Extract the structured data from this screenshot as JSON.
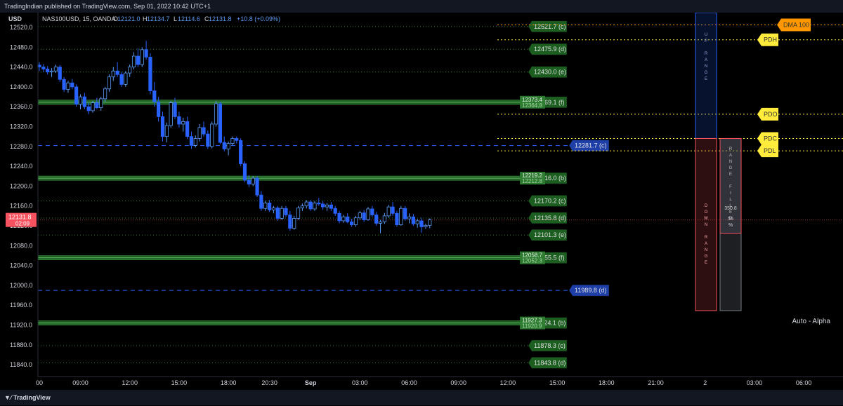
{
  "attribution": "TradingIndian published on TradingView.com, Sep 01, 2022 10:42 UTC+1",
  "footer_brand": "TradingView",
  "axis_unit": "USD",
  "symbol_header": {
    "symbol": "NAS100USD, 15, OANDA",
    "o_label": "O",
    "o": "12121.0",
    "h_label": "H",
    "h": "12134.7",
    "l_label": "L",
    "l": "12114.6",
    "c_label": "C",
    "c": "12131.8",
    "change": "+10.8 (+0.09%)"
  },
  "current_price": {
    "price": "12131.8",
    "countdown": "02:09"
  },
  "watermark": "Auto - Alpha",
  "colors": {
    "up": "#5b9cf6",
    "down": "#2962ff",
    "green_band": "#1b5e20",
    "yellow": "#ffeb3b",
    "orange": "#ff9800",
    "blue_label": "#1e3fa8",
    "red": "#f7525f"
  },
  "chart_data": {
    "type": "candlestick",
    "ylim": [
      11810,
      12540
    ],
    "y_ticks": [
      12520,
      12480,
      12440,
      12400,
      12360,
      12320,
      12280,
      12240,
      12200,
      12160,
      12120,
      12080,
      12040,
      12000,
      11960,
      11920,
      11880,
      11840
    ],
    "y_tick_labels": [
      "12520.0",
      "12480.0",
      "12440.0",
      "12400.0",
      "12360.0",
      "12320.0",
      "12280.0",
      "12240.0",
      "12200.0",
      "12160.0",
      "12120.0",
      "12080.0",
      "12040.0",
      "12000.0",
      "11960.0",
      "11920.0",
      "11880.0",
      "11840.0"
    ],
    "x_labels": [
      {
        "label": "00",
        "i": 0
      },
      {
        "label": "09:00",
        "i": 10
      },
      {
        "label": "12:00",
        "i": 22
      },
      {
        "label": "15:00",
        "i": 34
      },
      {
        "label": "18:00",
        "i": 46
      },
      {
        "label": "20:30",
        "i": 56
      },
      {
        "label": "Sep",
        "i": 66
      },
      {
        "label": "03:00",
        "i": 78
      },
      {
        "label": "06:00",
        "i": 90
      },
      {
        "label": "09:00",
        "i": 102
      },
      {
        "label": "12:00",
        "i": 114
      },
      {
        "label": "15:00",
        "i": 126
      },
      {
        "label": "18:00",
        "i": 138
      },
      {
        "label": "21:00",
        "i": 150
      },
      {
        "label": "2",
        "i": 162
      },
      {
        "label": "03:00",
        "i": 174
      },
      {
        "label": "06:00",
        "i": 186
      }
    ],
    "candles": [
      [
        12444,
        12450,
        12432,
        12440
      ],
      [
        12440,
        12446,
        12430,
        12436
      ],
      [
        12436,
        12442,
        12425,
        12430
      ],
      [
        12430,
        12438,
        12420,
        12432
      ],
      [
        12432,
        12445,
        12428,
        12440
      ],
      [
        12440,
        12444,
        12410,
        12415
      ],
      [
        12415,
        12420,
        12390,
        12395
      ],
      [
        12395,
        12412,
        12388,
        12408
      ],
      [
        12408,
        12416,
        12395,
        12400
      ],
      [
        12400,
        12405,
        12360,
        12365
      ],
      [
        12365,
        12385,
        12355,
        12380
      ],
      [
        12380,
        12388,
        12355,
        12360
      ],
      [
        12360,
        12368,
        12345,
        12352
      ],
      [
        12352,
        12372,
        12348,
        12368
      ],
      [
        12368,
        12378,
        12355,
        12358
      ],
      [
        12358,
        12380,
        12352,
        12376
      ],
      [
        12376,
        12400,
        12370,
        12396
      ],
      [
        12396,
        12425,
        12390,
        12420
      ],
      [
        12420,
        12440,
        12412,
        12432
      ],
      [
        12432,
        12450,
        12420,
        12425
      ],
      [
        12425,
        12430,
        12400,
        12405
      ],
      [
        12405,
        12432,
        12400,
        12428
      ],
      [
        12428,
        12445,
        12420,
        12440
      ],
      [
        12440,
        12470,
        12435,
        12462
      ],
      [
        12462,
        12478,
        12440,
        12445
      ],
      [
        12445,
        12480,
        12440,
        12475
      ],
      [
        12475,
        12493,
        12455,
        12460
      ],
      [
        12460,
        12468,
        12385,
        12392
      ],
      [
        12392,
        12410,
        12360,
        12370
      ],
      [
        12370,
        12380,
        12330,
        12340
      ],
      [
        12340,
        12350,
        12290,
        12300
      ],
      [
        12300,
        12328,
        12288,
        12322
      ],
      [
        12322,
        12372,
        12318,
        12368
      ],
      [
        12368,
        12378,
        12335,
        12340
      ],
      [
        12340,
        12350,
        12318,
        12325
      ],
      [
        12325,
        12338,
        12310,
        12330
      ],
      [
        12330,
        12340,
        12295,
        12300
      ],
      [
        12300,
        12310,
        12275,
        12282
      ],
      [
        12282,
        12302,
        12278,
        12296
      ],
      [
        12296,
        12325,
        12290,
        12318
      ],
      [
        12318,
        12330,
        12300,
        12305
      ],
      [
        12305,
        12312,
        12275,
        12280
      ],
      [
        12280,
        12330,
        12276,
        12325
      ],
      [
        12325,
        12372,
        12320,
        12366
      ],
      [
        12366,
        12370,
        12285,
        12288
      ],
      [
        12288,
        12300,
        12270,
        12275
      ],
      [
        12275,
        12290,
        12262,
        12286
      ],
      [
        12286,
        12300,
        12282,
        12296
      ],
      [
        12296,
        12300,
        12286,
        12292
      ],
      [
        12292,
        12296,
        12240,
        12245
      ],
      [
        12245,
        12250,
        12208,
        12212
      ],
      [
        12212,
        12222,
        12198,
        12204
      ],
      [
        12204,
        12220,
        12200,
        12216
      ],
      [
        12216,
        12220,
        12178,
        12182
      ],
      [
        12182,
        12190,
        12150,
        12155
      ],
      [
        12155,
        12170,
        12150,
        12166
      ],
      [
        12166,
        12172,
        12148,
        12152
      ],
      [
        12152,
        12160,
        12145,
        12156
      ],
      [
        12156,
        12160,
        12130,
        12135
      ],
      [
        12135,
        12160,
        12132,
        12155
      ],
      [
        12155,
        12160,
        12138,
        12142
      ],
      [
        12142,
        12150,
        12110,
        12115
      ],
      [
        12115,
        12140,
        12112,
        12135
      ],
      [
        12135,
        12160,
        12132,
        12156
      ],
      [
        12156,
        12165,
        12150,
        12160
      ],
      [
        12160,
        12172,
        12155,
        12168
      ],
      [
        12168,
        12172,
        12150,
        12154
      ],
      [
        12154,
        12170,
        12150,
        12166
      ],
      [
        12166,
        12176,
        12160,
        12164
      ],
      [
        12164,
        12170,
        12152,
        12158
      ],
      [
        12158,
        12166,
        12150,
        12162
      ],
      [
        12162,
        12168,
        12150,
        12155
      ],
      [
        12155,
        12160,
        12140,
        12145
      ],
      [
        12145,
        12150,
        12125,
        12130
      ],
      [
        12130,
        12142,
        12126,
        12138
      ],
      [
        12138,
        12145,
        12125,
        12128
      ],
      [
        12128,
        12134,
        12118,
        12122
      ],
      [
        12122,
        12140,
        12118,
        12136
      ],
      [
        12136,
        12150,
        12132,
        12146
      ],
      [
        12146,
        12152,
        12128,
        12132
      ],
      [
        12132,
        12158,
        12130,
        12154
      ],
      [
        12154,
        12160,
        12138,
        12142
      ],
      [
        12142,
        12148,
        12120,
        12125
      ],
      [
        12125,
        12132,
        12105,
        12128
      ],
      [
        12128,
        12146,
        12124,
        12140
      ],
      [
        12140,
        12162,
        12136,
        12158
      ],
      [
        12158,
        12168,
        12140,
        12145
      ],
      [
        12145,
        12150,
        12118,
        12122
      ],
      [
        12122,
        12160,
        12120,
        12155
      ],
      [
        12155,
        12160,
        12130,
        12134
      ],
      [
        12134,
        12145,
        12125,
        12138
      ],
      [
        12138,
        12144,
        12120,
        12124
      ],
      [
        12124,
        12134,
        12116,
        12130
      ],
      [
        12130,
        12136,
        12106,
        12118
      ],
      [
        12118,
        12124,
        12114,
        12121
      ],
      [
        12121,
        12135,
        12115,
        12132
      ]
    ],
    "levels": [
      {
        "price": 12521.7,
        "label": "12521.7 (c)",
        "style": "dotted",
        "color": "#2e7d32",
        "label_color": "#1b5e20"
      },
      {
        "price": 12475.9,
        "label": "12475.9 (d)",
        "style": "dotted",
        "color": "#2e7d32",
        "label_color": "#1b5e20"
      },
      {
        "price": 12430.0,
        "label": "12430.0 (e)",
        "style": "dotted",
        "color": "#2e7d32",
        "label_color": "#1b5e20"
      },
      {
        "price": 12369.1,
        "label": "12369.1 (f)",
        "style": "band",
        "color": "#2e7d32",
        "label_color": "#1b5e20",
        "tag": "12373.4",
        "tag2": "12364.8"
      },
      {
        "price": 12216.0,
        "label": "12216.0 (b)",
        "style": "band",
        "color": "#2e7d32",
        "label_color": "#1b5e20",
        "tag": "12219.2",
        "tag2": "12212.8"
      },
      {
        "price": 12170.2,
        "label": "12170.2 (c)",
        "style": "dotted",
        "color": "#2e7d32",
        "label_color": "#1b5e20"
      },
      {
        "price": 12135.8,
        "label": "12135.8 (d)",
        "style": "dotted",
        "color": "#2e7d32",
        "label_color": "#1b5e20"
      },
      {
        "price": 12101.3,
        "label": "12101.3 (e)",
        "style": "dotted",
        "color": "#2e7d32",
        "label_color": "#1b5e20"
      },
      {
        "price": 12055.5,
        "label": "12055.5 (f)",
        "style": "band",
        "color": "#2e7d32",
        "label_color": "#1b5e20",
        "tag": "12058.7",
        "tag2": "12052.3"
      },
      {
        "price": 11924.1,
        "label": "11924.1 (b)",
        "style": "band",
        "color": "#2e7d32",
        "label_color": "#1b5e20",
        "tag": "11927.3",
        "tag2": "11920.9"
      },
      {
        "price": 11878.3,
        "label": "11878.3 (c)",
        "style": "dotted",
        "color": "#2e7d32",
        "label_color": "#1b5e20"
      },
      {
        "price": 11843.8,
        "label": "11843.8 (d)",
        "style": "dotted",
        "color": "#2e7d32",
        "label_color": "#1b5e20"
      },
      {
        "price": 12281.7,
        "label": "12281.7 (c)",
        "style": "dashed-blue",
        "color": "#2962ff",
        "label_color": "#1e3fa8"
      },
      {
        "price": 11989.8,
        "label": "11989.8 (d)",
        "style": "dashed-blue",
        "color": "#2962ff",
        "label_color": "#1e3fa8"
      }
    ],
    "daily_levels": [
      {
        "price": 12525,
        "label": "DMA 100",
        "color": "#ff9800"
      },
      {
        "price": 12495,
        "label": "PDH",
        "color": "#ffeb3b"
      },
      {
        "price": 12345,
        "label": "PDO",
        "color": "#ffeb3b"
      },
      {
        "price": 12296,
        "label": "PDC",
        "color": "#ffeb3b"
      },
      {
        "price": 12271,
        "label": "PDL",
        "color": "#ffeb3b"
      }
    ],
    "range_boxes": {
      "up": {
        "label": "UP RANGE",
        "top": 12540,
        "bottom": 12296
      },
      "down": {
        "label": "DOWN RANGE",
        "top": 12296,
        "bottom": 11949
      },
      "filled": {
        "label": "RANGE FILLED",
        "value": "350.8",
        "pct": "55",
        "pct_unit": "%",
        "top": 12296,
        "bottom": 11949,
        "fill_bottom": 12105
      }
    }
  }
}
